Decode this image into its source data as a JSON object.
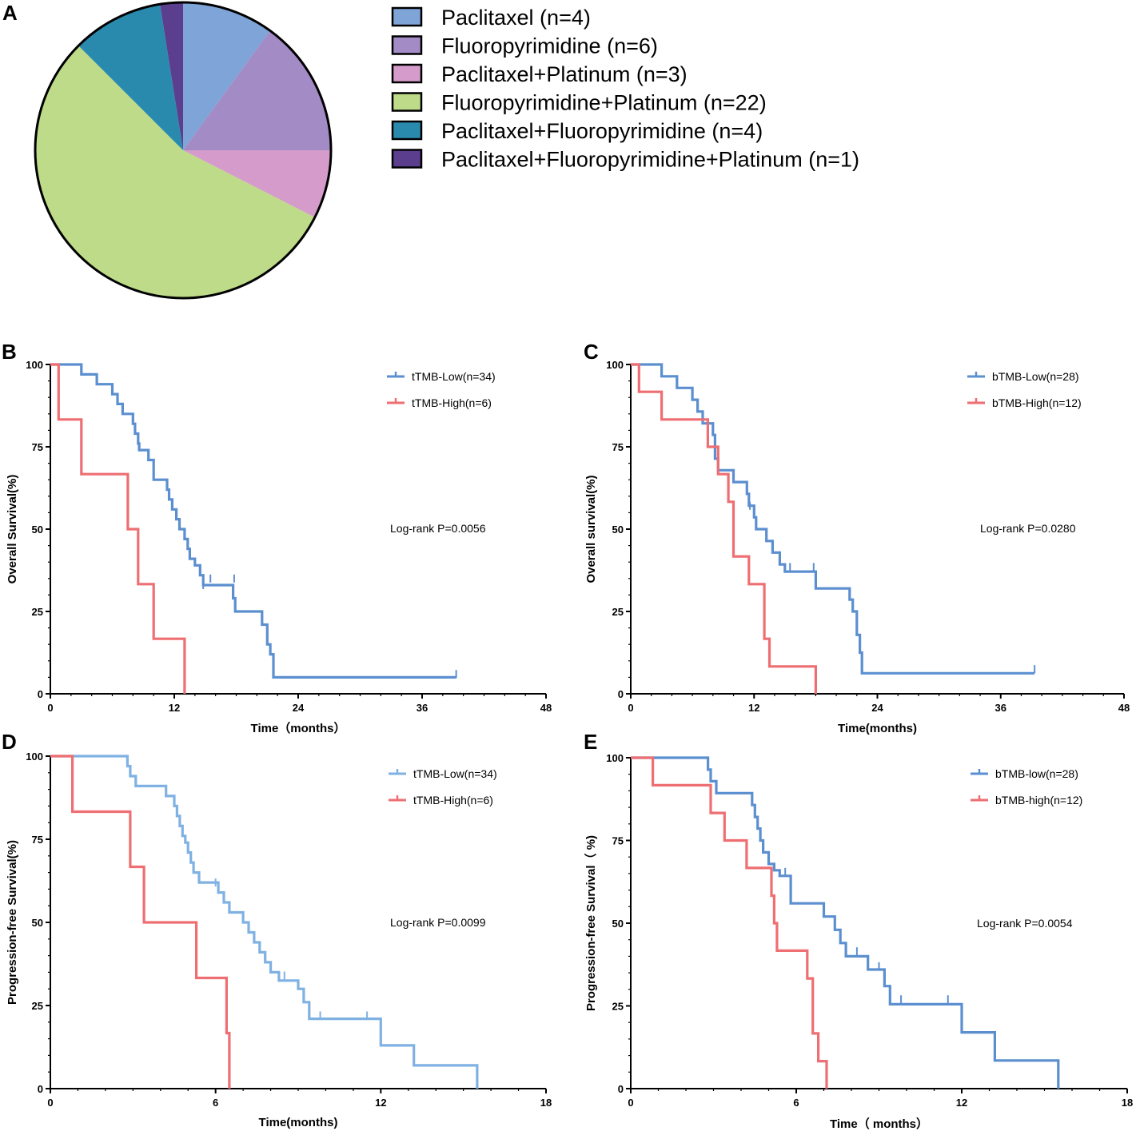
{
  "colors": {
    "km_blue": "#5b8fd0",
    "km_light_blue": "#7fb1e3",
    "km_red": "#ee6e72",
    "axis": "#000000"
  },
  "chart_data": [
    {
      "panel": "A",
      "type": "pie",
      "slices": [
        {
          "label": "Paclitaxel (n=4)",
          "value": 4,
          "color": "#7ea4d8"
        },
        {
          "label": "Fluoropyrimidine (n=6)",
          "value": 6,
          "color": "#a38bc5"
        },
        {
          "label": "Paclitaxel+Platinum (n=3)",
          "value": 3,
          "color": "#d59ccb"
        },
        {
          "label": "Fluoropyrimidine+Platinum (n=22)",
          "value": 22,
          "color": "#bddb88"
        },
        {
          "label": "Paclitaxel+Fluoropyrimidine (n=4)",
          "value": 4,
          "color": "#2a8aae"
        },
        {
          "label": "Paclitaxel+Fluoropyrimidine+Platinum (n=1)",
          "value": 1,
          "color": "#5b3f8e"
        }
      ]
    },
    {
      "panel": "B",
      "type": "line",
      "xlabel": "Time（months）",
      "ylabel": "Overall Survival(%)",
      "xlim": [
        0,
        48
      ],
      "ylim": [
        0,
        100
      ],
      "xticks": [
        0,
        12,
        24,
        36,
        48
      ],
      "yticks": [
        0,
        25,
        50,
        75,
        100
      ],
      "annotation": "Log-rank P=0.0056",
      "series": [
        {
          "name": "tTMB-Low(n=34)",
          "color": "#5b8fd0",
          "steps": [
            [
              0,
              100
            ],
            [
              3,
              97
            ],
            [
              4.5,
              94
            ],
            [
              6,
              91
            ],
            [
              6.5,
              88
            ],
            [
              7,
              85
            ],
            [
              8,
              82
            ],
            [
              8.2,
              79
            ],
            [
              8.5,
              76
            ],
            [
              8.6,
              74
            ],
            [
              9.5,
              71
            ],
            [
              10,
              68
            ],
            [
              10,
              65
            ],
            [
              11.3,
              62
            ],
            [
              11.5,
              59
            ],
            [
              11.8,
              56
            ],
            [
              12.2,
              53
            ],
            [
              12.5,
              50
            ],
            [
              13,
              47
            ],
            [
              13.3,
              44
            ],
            [
              13.5,
              41
            ],
            [
              14,
              39
            ],
            [
              14.5,
              36
            ],
            [
              14.8,
              33
            ],
            [
              17.7,
              29
            ],
            [
              17.9,
              25
            ],
            [
              20.5,
              21
            ],
            [
              21,
              15
            ],
            [
              21.3,
              12
            ],
            [
              21.6,
              5
            ]
          ],
          "end": 39.3,
          "censors": [
            [
              14.8,
              33
            ],
            [
              15.5,
              35
            ],
            [
              17.8,
              35
            ],
            [
              17.9,
              27
            ],
            [
              39.3,
              6
            ]
          ]
        },
        {
          "name": "tTMB-High(n=6)",
          "color": "#ee6e72",
          "steps": [
            [
              0,
              100
            ],
            [
              0.8,
              83.3
            ],
            [
              3,
              66.7
            ],
            [
              7.5,
              50
            ],
            [
              8.5,
              33.3
            ],
            [
              10,
              16.7
            ],
            [
              13,
              0
            ]
          ],
          "end": 13,
          "censors": []
        }
      ]
    },
    {
      "panel": "C",
      "type": "line",
      "xlabel": "Time(months)",
      "ylabel": "Overall survival(%)",
      "xlim": [
        0,
        48
      ],
      "ylim": [
        0,
        100
      ],
      "xticks": [
        0,
        12,
        24,
        36,
        48
      ],
      "yticks": [
        0,
        25,
        50,
        75,
        100
      ],
      "annotation": "Log-rank P=0.0280",
      "series": [
        {
          "name": "bTMB-Low(n=28)",
          "color": "#5b8fd0",
          "steps": [
            [
              0,
              100
            ],
            [
              3,
              96.4
            ],
            [
              4.5,
              92.9
            ],
            [
              6,
              89.3
            ],
            [
              6.5,
              85.7
            ],
            [
              7,
              82.1
            ],
            [
              8,
              78.6
            ],
            [
              8.2,
              71.4
            ],
            [
              8.5,
              67.9
            ],
            [
              10,
              64.3
            ],
            [
              11.3,
              60.7
            ],
            [
              11.5,
              57.1
            ],
            [
              12,
              53.6
            ],
            [
              12.2,
              50
            ],
            [
              13.2,
              46.4
            ],
            [
              13.8,
              42.9
            ],
            [
              14.5,
              39.3
            ],
            [
              15,
              37.1
            ],
            [
              18,
              32
            ],
            [
              21.3,
              28.6
            ],
            [
              21.6,
              25
            ],
            [
              22,
              17.9
            ],
            [
              22.3,
              12.5
            ],
            [
              22.5,
              6.25
            ]
          ],
          "end": 39.3,
          "censors": [
            [
              11.6,
              57.1
            ],
            [
              15.5,
              38.5
            ],
            [
              17.8,
              38.5
            ],
            [
              39.3,
              7.5
            ]
          ]
        },
        {
          "name": "bTMB-High(n=12)",
          "color": "#ee6e72",
          "steps": [
            [
              0,
              100
            ],
            [
              0.8,
              91.7
            ],
            [
              3,
              83.3
            ],
            [
              7.5,
              75
            ],
            [
              8.5,
              66.7
            ],
            [
              9.5,
              58.3
            ],
            [
              10,
              50
            ],
            [
              10,
              41.7
            ],
            [
              11.5,
              33.3
            ],
            [
              13,
              16.7
            ],
            [
              13.5,
              8.3
            ],
            [
              18,
              0
            ]
          ],
          "end": 18,
          "censors": []
        }
      ]
    },
    {
      "panel": "D",
      "type": "line",
      "xlabel": "Time(months)",
      "ylabel": "Progression-free Survival(%)",
      "xlim": [
        0,
        18
      ],
      "ylim": [
        0,
        100
      ],
      "xticks": [
        0,
        6,
        12,
        18
      ],
      "yticks": [
        0,
        25,
        50,
        75,
        100
      ],
      "annotation": "Log-rank P=0.0099",
      "series": [
        {
          "name": "tTMB-Low(n=34)",
          "color": "#7fb1e3",
          "steps": [
            [
              0,
              100
            ],
            [
              2.8,
              97
            ],
            [
              2.9,
              94
            ],
            [
              3.1,
              91
            ],
            [
              4.2,
              88
            ],
            [
              4.5,
              85
            ],
            [
              4.6,
              82
            ],
            [
              4.7,
              79
            ],
            [
              4.8,
              76
            ],
            [
              4.9,
              74
            ],
            [
              5,
              71
            ],
            [
              5.1,
              68
            ],
            [
              5.2,
              65
            ],
            [
              5.4,
              62
            ],
            [
              6.1,
              59
            ],
            [
              6.3,
              56
            ],
            [
              6.5,
              53
            ],
            [
              7,
              50
            ],
            [
              7.2,
              47
            ],
            [
              7.4,
              44
            ],
            [
              7.6,
              41
            ],
            [
              7.8,
              38
            ],
            [
              8,
              35
            ],
            [
              8.3,
              32.5
            ],
            [
              9,
              30
            ],
            [
              9.2,
              26
            ],
            [
              9.4,
              21
            ],
            [
              12,
              18
            ],
            [
              12,
              13
            ],
            [
              13.2,
              7
            ],
            [
              15.5,
              0
            ]
          ],
          "end": 15.5,
          "censors": [
            [
              6.0,
              62
            ],
            [
              8.5,
              34
            ],
            [
              9.8,
              22
            ],
            [
              11.5,
              22
            ],
            [
              15.5,
              2
            ]
          ]
        },
        {
          "name": "tTMB-High(n=6)",
          "color": "#ee6e72",
          "steps": [
            [
              0,
              100
            ],
            [
              0.8,
              83.3
            ],
            [
              2.9,
              66.7
            ],
            [
              3.4,
              50
            ],
            [
              5.3,
              33.3
            ],
            [
              6.4,
              16.7
            ],
            [
              6.5,
              0
            ]
          ],
          "end": 6.5,
          "censors": []
        }
      ]
    },
    {
      "panel": "E",
      "type": "line",
      "xlabel": "Time（ months）",
      "ylabel": "Progression-free Survival（ %)",
      "xlim": [
        0,
        18
      ],
      "ylim": [
        0,
        100
      ],
      "xticks": [
        0,
        6,
        12,
        18
      ],
      "yticks": [
        0,
        25,
        50,
        75,
        100
      ],
      "annotation": "Log-rank P=0.0054",
      "series": [
        {
          "name": "bTMB-low(n=28)",
          "color": "#5b8fd0",
          "steps": [
            [
              0,
              100
            ],
            [
              2.8,
              96.4
            ],
            [
              2.9,
              92.9
            ],
            [
              3.1,
              89.3
            ],
            [
              4.4,
              85.7
            ],
            [
              4.5,
              82.1
            ],
            [
              4.6,
              78.6
            ],
            [
              4.7,
              75
            ],
            [
              4.8,
              71.4
            ],
            [
              5,
              67.9
            ],
            [
              5.2,
              66
            ],
            [
              5.4,
              64.3
            ],
            [
              5.8,
              56
            ],
            [
              7,
              52
            ],
            [
              7.4,
              48
            ],
            [
              7.6,
              44
            ],
            [
              7.8,
              40
            ],
            [
              8.6,
              36
            ],
            [
              9.2,
              31
            ],
            [
              9.4,
              25.5
            ],
            [
              12,
              17
            ],
            [
              13.2,
              8.5
            ],
            [
              15.5,
              0
            ]
          ],
          "end": 15.5,
          "censors": [
            [
              5.6,
              65.5
            ],
            [
              8.2,
              41.5
            ],
            [
              9.0,
              37
            ],
            [
              9.8,
              27
            ],
            [
              11.5,
              27
            ]
          ]
        },
        {
          "name": "bTMB-high(n=12)",
          "color": "#ee6e72",
          "steps": [
            [
              0,
              100
            ],
            [
              0.8,
              91.7
            ],
            [
              2.9,
              83.3
            ],
            [
              3.4,
              75
            ],
            [
              4.2,
              66.7
            ],
            [
              5.1,
              58.3
            ],
            [
              5.2,
              50
            ],
            [
              5.3,
              41.7
            ],
            [
              6.4,
              33.3
            ],
            [
              6.6,
              16.7
            ],
            [
              6.8,
              8.3
            ],
            [
              7.1,
              0
            ]
          ],
          "end": 7.1,
          "censors": []
        }
      ]
    }
  ]
}
